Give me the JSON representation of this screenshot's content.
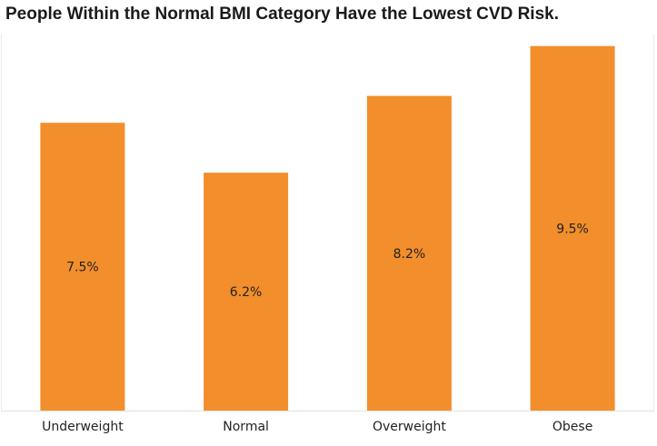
{
  "chart_data": {
    "type": "bar",
    "title": "People Within the Normal BMI Category Have the Lowest CVD Risk.",
    "categories": [
      "Underweight",
      "Normal",
      "Overweight",
      "Obese"
    ],
    "values": [
      7.5,
      6.2,
      8.2,
      9.5
    ],
    "value_labels": [
      "7.5%",
      "6.2%",
      "8.2%",
      "9.5%"
    ],
    "xlabel": "",
    "ylabel": "",
    "ylim": [
      0,
      9.8
    ],
    "grid": false,
    "legend": "none",
    "bar_color": "#F28E2B"
  }
}
